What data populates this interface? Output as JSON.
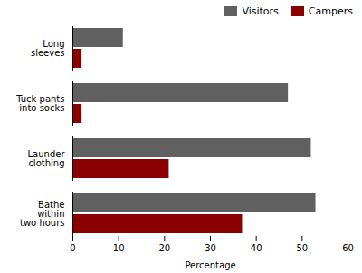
{
  "chart_data": {
    "type": "bar",
    "orientation": "horizontal",
    "categories": [
      "Long\nsleeves",
      "Tuck pants\ninto socks",
      "Launder\nclothing",
      "Bathe\nwithin\ntwo hours"
    ],
    "series": [
      {
        "name": "Visitors",
        "color": "#606060",
        "values": [
          11,
          47,
          52,
          53
        ]
      },
      {
        "name": "Campers",
        "color": "#8B0000",
        "values": [
          2,
          2,
          21,
          37
        ]
      }
    ],
    "xlabel": "Percentage",
    "xlim": [
      0,
      60
    ],
    "xticks": [
      0,
      10,
      20,
      30,
      40,
      50,
      60
    ],
    "legend": "upper right",
    "grid": false
  }
}
